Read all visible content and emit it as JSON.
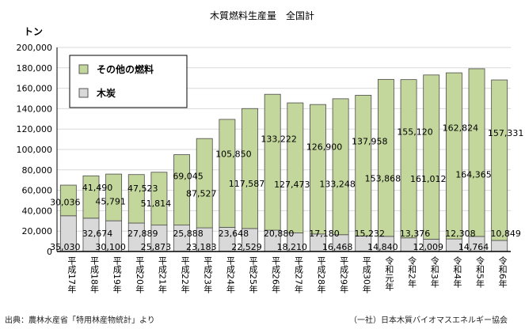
{
  "chart_data": {
    "type": "bar",
    "stacked": true,
    "title": "木質燃料生産量　全国計",
    "ylabel": "トン",
    "ylim": [
      0,
      200000
    ],
    "yticks": [
      0,
      20000,
      40000,
      60000,
      80000,
      100000,
      120000,
      140000,
      160000,
      180000,
      200000
    ],
    "ytick_labels": [
      "0",
      "20,000",
      "40,000",
      "60,000",
      "80,000",
      "100,000",
      "120,000",
      "140,000",
      "160,000",
      "180,000",
      "200,000"
    ],
    "grid": true,
    "legend_position": "top-left",
    "categories": [
      "平成17年",
      "平成18年",
      "平成19年",
      "平成20年",
      "平成21年",
      "平成22年",
      "平成23年",
      "平成24年",
      "平成25年",
      "平成26年",
      "平成27年",
      "平成28年",
      "平成29年",
      "平成30年",
      "令和元年",
      "令和2年",
      "令和3年",
      "令和4年",
      "令和5年",
      "令和6年"
    ],
    "series": [
      {
        "name": "木炭",
        "color": "#d9d9d9",
        "values": [
          35030,
          32674,
          30100,
          27889,
          25873,
          25888,
          23183,
          23648,
          22529,
          20880,
          18210,
          17180,
          16468,
          15232,
          14840,
          13376,
          12009,
          12308,
          14764,
          10849
        ],
        "labels": [
          "35,030",
          "32,674",
          "30,100",
          "27,889",
          "25,873",
          "25,888",
          "23,183",
          "23,648",
          "22,529",
          "20,880",
          "18,210",
          "17,180",
          "16,468",
          "15,232",
          "14,840",
          "13,376",
          "12,009",
          "12,308",
          "14,764",
          "10,849"
        ]
      },
      {
        "name": "その他の燃料",
        "color": "#c3d69b",
        "values": [
          30036,
          41490,
          45791,
          47523,
          51814,
          69045,
          87527,
          105850,
          117587,
          133222,
          127473,
          126900,
          133248,
          137958,
          153868,
          155120,
          161012,
          162824,
          164365,
          157331
        ],
        "labels": [
          "30,036",
          "41,490",
          "45,791",
          "47,523",
          "51,814",
          "69,045",
          "87,527",
          "105,850",
          "117,587",
          "133,222",
          "127,473",
          "126,900",
          "133,248",
          "137,958",
          "153,868",
          "155,120",
          "161,012",
          "162,824",
          "164,365",
          "157,331"
        ]
      }
    ]
  },
  "footer": {
    "source": "出典：農林水産省「特用林産物統計」より",
    "credit": "（一社）日本木質バイオマスエネルギー協会"
  }
}
